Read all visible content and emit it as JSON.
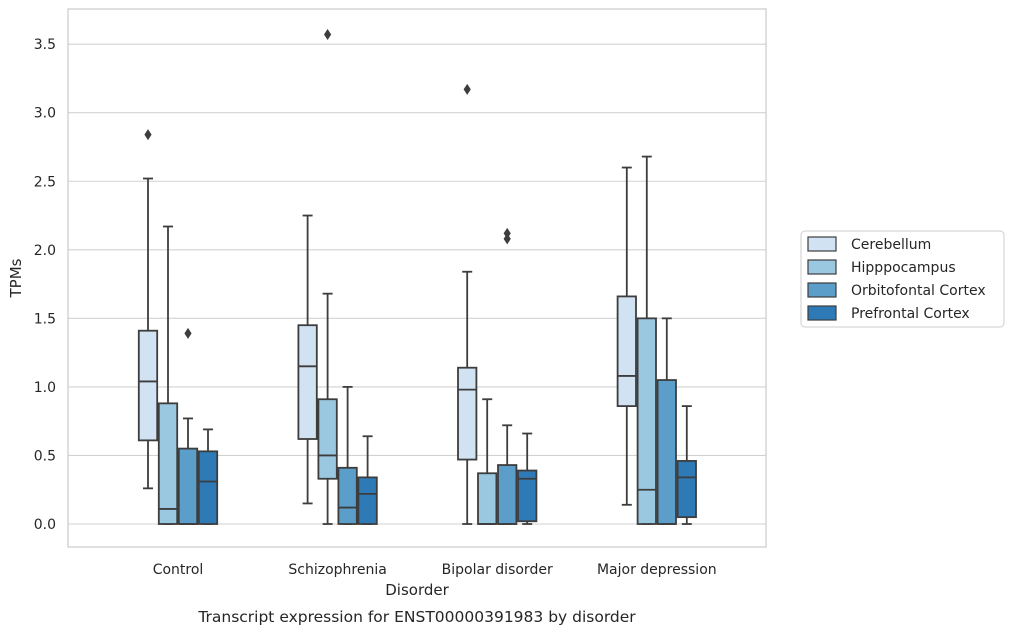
{
  "chart_data": {
    "type": "box",
    "title": "",
    "caption": "Transcript expression for ENST00000391983 by disorder",
    "xlabel": "Disorder",
    "ylabel": "TPMs",
    "ylim": [
      -0.17,
      3.75
    ],
    "yticks": [
      0.0,
      0.5,
      1.0,
      1.5,
      2.0,
      2.5,
      3.0,
      3.5
    ],
    "ytick_labels": [
      "0.0",
      "0.5",
      "1.0",
      "1.5",
      "2.0",
      "2.5",
      "3.0",
      "3.5"
    ],
    "grid": "horizontal",
    "legend_position": "right",
    "categories": [
      "Control",
      "Schizophrenia",
      "Bipolar disorder",
      "Major depression"
    ],
    "series": [
      {
        "name": "Cerebellum",
        "color": "#d1e2f2",
        "boxes": [
          {
            "whislo": 0.26,
            "q1": 0.61,
            "med": 1.04,
            "q3": 1.41,
            "whishi": 2.52,
            "fliers": [
              2.84
            ]
          },
          {
            "whislo": 0.15,
            "q1": 0.62,
            "med": 1.15,
            "q3": 1.45,
            "whishi": 2.25,
            "fliers": []
          },
          {
            "whislo": 0.0,
            "q1": 0.47,
            "med": 0.98,
            "q3": 1.14,
            "whishi": 1.84,
            "fliers": [
              3.17
            ]
          },
          {
            "whislo": 0.14,
            "q1": 0.86,
            "med": 1.08,
            "q3": 1.66,
            "whishi": 2.6,
            "fliers": []
          }
        ]
      },
      {
        "name": "Hipppocampus",
        "color": "#9ac8e0",
        "boxes": [
          {
            "whislo": 0.0,
            "q1": 0.0,
            "med": 0.11,
            "q3": 0.88,
            "whishi": 2.17,
            "fliers": []
          },
          {
            "whislo": 0.0,
            "q1": 0.33,
            "med": 0.5,
            "q3": 0.91,
            "whishi": 1.68,
            "fliers": [
              3.57
            ]
          },
          {
            "whislo": 0.0,
            "q1": 0.0,
            "med": 0.0,
            "q3": 0.37,
            "whishi": 0.91,
            "fliers": []
          },
          {
            "whislo": 0.0,
            "q1": 0.0,
            "med": 0.25,
            "q3": 1.5,
            "whishi": 2.68,
            "fliers": []
          }
        ]
      },
      {
        "name": "Orbitofontal Cortex",
        "color": "#5a9ec9",
        "boxes": [
          {
            "whislo": 0.0,
            "q1": 0.0,
            "med": 0.0,
            "q3": 0.55,
            "whishi": 0.77,
            "fliers": [
              1.39
            ]
          },
          {
            "whislo": 0.0,
            "q1": 0.0,
            "med": 0.12,
            "q3": 0.41,
            "whishi": 1.0,
            "fliers": []
          },
          {
            "whislo": 0.0,
            "q1": 0.0,
            "med": 0.0,
            "q3": 0.43,
            "whishi": 0.72,
            "fliers": [
              2.08,
              2.12
            ]
          },
          {
            "whislo": 0.0,
            "q1": 0.0,
            "med": 0.0,
            "q3": 1.05,
            "whishi": 1.5,
            "fliers": []
          }
        ]
      },
      {
        "name": "Prefrontal Cortex",
        "color": "#2d7ab7",
        "boxes": [
          {
            "whislo": 0.0,
            "q1": 0.0,
            "med": 0.31,
            "q3": 0.53,
            "whishi": 0.69,
            "fliers": []
          },
          {
            "whislo": 0.0,
            "q1": 0.0,
            "med": 0.22,
            "q3": 0.34,
            "whishi": 0.64,
            "fliers": []
          },
          {
            "whislo": 0.0,
            "q1": 0.02,
            "med": 0.33,
            "q3": 0.39,
            "whishi": 0.66,
            "fliers": []
          },
          {
            "whislo": 0.0,
            "q1": 0.05,
            "med": 0.34,
            "q3": 0.46,
            "whishi": 0.86,
            "fliers": []
          }
        ]
      }
    ]
  }
}
